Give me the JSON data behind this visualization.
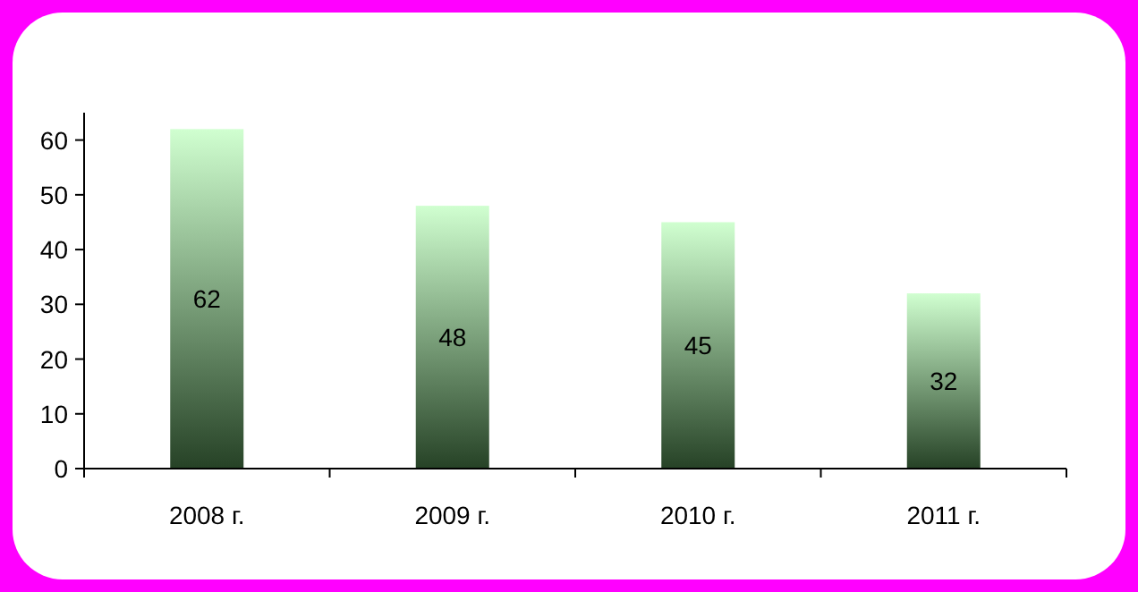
{
  "chart_data": {
    "type": "bar",
    "categories": [
      "2008 г.",
      "2009 г.",
      "2010 г.",
      "2011 г."
    ],
    "values": [
      62,
      48,
      45,
      32
    ],
    "color": "#5fa85f",
    "ylim": [
      0,
      65
    ],
    "yticks": [
      0,
      10,
      20,
      30,
      40,
      50,
      60
    ],
    "data_labels": true,
    "grid": false
  }
}
